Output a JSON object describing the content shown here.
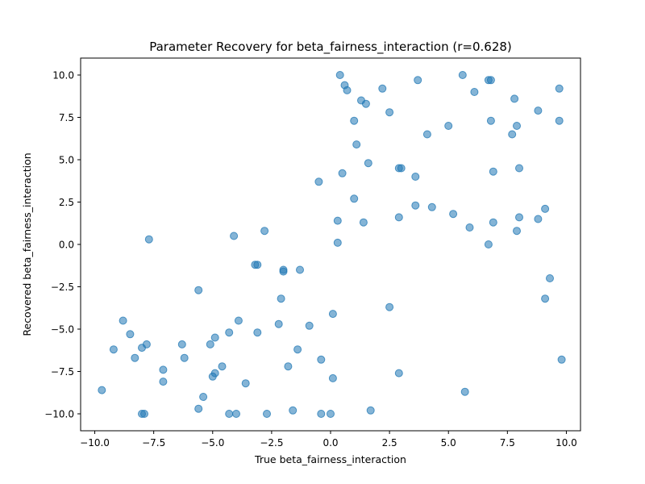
{
  "chart_data": {
    "type": "scatter",
    "title": "Parameter Recovery for beta_fairness_interaction (r=0.628)",
    "xlabel": "True beta_fairness_interaction",
    "ylabel": "Recovered beta_fairness_interaction",
    "xlim": [
      -10.6,
      10.6
    ],
    "ylim": [
      -11.0,
      11.0
    ],
    "xticks": [
      -10.0,
      -7.5,
      -5.0,
      -2.5,
      0.0,
      2.5,
      5.0,
      7.5,
      10.0
    ],
    "xtick_labels": [
      "−10.0",
      "−7.5",
      "−5.0",
      "−2.5",
      "0.0",
      "2.5",
      "5.0",
      "7.5",
      "10.0"
    ],
    "yticks": [
      -10.0,
      -7.5,
      -5.0,
      -2.5,
      0.0,
      2.5,
      5.0,
      7.5,
      10.0
    ],
    "ytick_labels": [
      "−10.0",
      "−7.5",
      "−5.0",
      "−2.5",
      "0.0",
      "2.5",
      "5.0",
      "7.5",
      "10.0"
    ],
    "grid": false,
    "marker_color": "#1f77b4",
    "marker_alpha": 0.55,
    "points": [
      {
        "x": 0.4,
        "y": 10.0
      },
      {
        "x": 0.6,
        "y": 9.4
      },
      {
        "x": 0.7,
        "y": 9.1
      },
      {
        "x": 2.2,
        "y": 9.2
      },
      {
        "x": 3.7,
        "y": 9.7
      },
      {
        "x": 5.6,
        "y": 10.0
      },
      {
        "x": 6.7,
        "y": 9.7
      },
      {
        "x": 6.8,
        "y": 9.7
      },
      {
        "x": 6.1,
        "y": 9.0
      },
      {
        "x": 9.7,
        "y": 9.2
      },
      {
        "x": 1.3,
        "y": 8.5
      },
      {
        "x": 1.5,
        "y": 8.3
      },
      {
        "x": 7.8,
        "y": 8.6
      },
      {
        "x": 8.8,
        "y": 7.9
      },
      {
        "x": 2.5,
        "y": 7.8
      },
      {
        "x": 1.0,
        "y": 7.3
      },
      {
        "x": 6.8,
        "y": 7.3
      },
      {
        "x": 9.7,
        "y": 7.3
      },
      {
        "x": 5.0,
        "y": 7.0
      },
      {
        "x": 7.9,
        "y": 7.0
      },
      {
        "x": 4.1,
        "y": 6.5
      },
      {
        "x": 7.7,
        "y": 6.5
      },
      {
        "x": 1.1,
        "y": 5.9
      },
      {
        "x": 1.6,
        "y": 4.8
      },
      {
        "x": 2.9,
        "y": 4.5
      },
      {
        "x": 3.0,
        "y": 4.5
      },
      {
        "x": 8.0,
        "y": 4.5
      },
      {
        "x": 6.9,
        "y": 4.3
      },
      {
        "x": 0.5,
        "y": 4.2
      },
      {
        "x": 3.6,
        "y": 4.0
      },
      {
        "x": -0.5,
        "y": 3.7
      },
      {
        "x": 1.0,
        "y": 2.7
      },
      {
        "x": 3.6,
        "y": 2.3
      },
      {
        "x": 4.3,
        "y": 2.2
      },
      {
        "x": 9.1,
        "y": 2.1
      },
      {
        "x": 5.2,
        "y": 1.8
      },
      {
        "x": 2.9,
        "y": 1.6
      },
      {
        "x": 8.0,
        "y": 1.6
      },
      {
        "x": 8.8,
        "y": 1.5
      },
      {
        "x": 0.3,
        "y": 1.4
      },
      {
        "x": 1.4,
        "y": 1.3
      },
      {
        "x": 6.9,
        "y": 1.3
      },
      {
        "x": 5.9,
        "y": 1.0
      },
      {
        "x": 7.9,
        "y": 0.8
      },
      {
        "x": -2.8,
        "y": 0.8
      },
      {
        "x": -4.1,
        "y": 0.5
      },
      {
        "x": -7.7,
        "y": 0.3
      },
      {
        "x": 0.3,
        "y": 0.1
      },
      {
        "x": 6.7,
        "y": 0.0
      },
      {
        "x": -3.2,
        "y": -1.2
      },
      {
        "x": -3.1,
        "y": -1.2
      },
      {
        "x": -2.0,
        "y": -1.5
      },
      {
        "x": -2.0,
        "y": -1.6
      },
      {
        "x": -1.3,
        "y": -1.5
      },
      {
        "x": 9.3,
        "y": -2.0
      },
      {
        "x": -5.6,
        "y": -2.7
      },
      {
        "x": -2.1,
        "y": -3.2
      },
      {
        "x": 9.1,
        "y": -3.2
      },
      {
        "x": 2.5,
        "y": -3.7
      },
      {
        "x": 0.1,
        "y": -4.1
      },
      {
        "x": -8.8,
        "y": -4.5
      },
      {
        "x": -3.9,
        "y": -4.5
      },
      {
        "x": -2.2,
        "y": -4.7
      },
      {
        "x": -0.9,
        "y": -4.8
      },
      {
        "x": -8.5,
        "y": -5.3
      },
      {
        "x": -4.3,
        "y": -5.2
      },
      {
        "x": -3.1,
        "y": -5.2
      },
      {
        "x": -4.9,
        "y": -5.5
      },
      {
        "x": -7.8,
        "y": -5.9
      },
      {
        "x": -6.3,
        "y": -5.9
      },
      {
        "x": -5.1,
        "y": -5.9
      },
      {
        "x": -9.2,
        "y": -6.2
      },
      {
        "x": -8.0,
        "y": -6.1
      },
      {
        "x": -1.4,
        "y": -6.2
      },
      {
        "x": -8.3,
        "y": -6.7
      },
      {
        "x": -6.2,
        "y": -6.7
      },
      {
        "x": -0.4,
        "y": -6.8
      },
      {
        "x": 9.8,
        "y": -6.8
      },
      {
        "x": -4.6,
        "y": -7.2
      },
      {
        "x": -1.8,
        "y": -7.2
      },
      {
        "x": -7.1,
        "y": -7.4
      },
      {
        "x": -4.9,
        "y": -7.6
      },
      {
        "x": -5.0,
        "y": -7.8
      },
      {
        "x": 2.9,
        "y": -7.6
      },
      {
        "x": 0.1,
        "y": -7.9
      },
      {
        "x": -7.1,
        "y": -8.1
      },
      {
        "x": -3.6,
        "y": -8.2
      },
      {
        "x": -9.7,
        "y": -8.6
      },
      {
        "x": 5.7,
        "y": -8.7
      },
      {
        "x": -5.4,
        "y": -9.0
      },
      {
        "x": -5.6,
        "y": -9.7
      },
      {
        "x": -1.6,
        "y": -9.8
      },
      {
        "x": 1.7,
        "y": -9.8
      },
      {
        "x": -8.0,
        "y": -10.0
      },
      {
        "x": -7.9,
        "y": -10.0
      },
      {
        "x": -4.3,
        "y": -10.0
      },
      {
        "x": -4.0,
        "y": -10.0
      },
      {
        "x": -2.7,
        "y": -10.0
      },
      {
        "x": -0.4,
        "y": -10.0
      },
      {
        "x": 0.0,
        "y": -10.0
      }
    ]
  }
}
